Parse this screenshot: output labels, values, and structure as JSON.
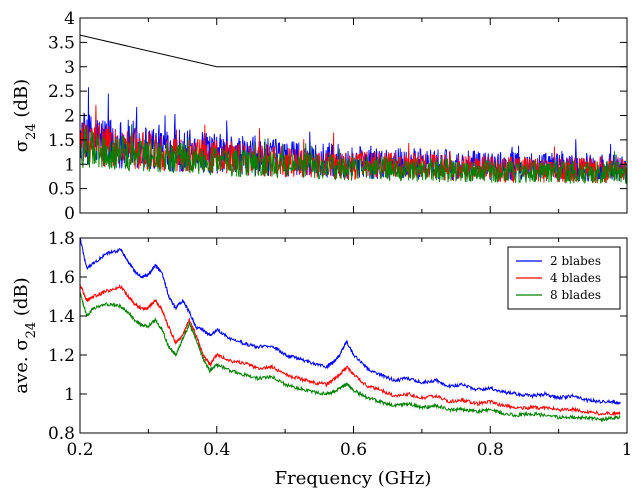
{
  "chart_data": [
    {
      "type": "line",
      "ylabel_base": "σ",
      "ylabel_sub": "24",
      "ylabel_unit": " (dB)",
      "xlim": [
        0.2,
        1.0
      ],
      "ylim": [
        0,
        4
      ],
      "xticks": [
        0.2,
        0.4,
        0.6,
        0.8,
        1.0
      ],
      "yticks": [
        0,
        0.5,
        1,
        1.5,
        2,
        2.5,
        3,
        3.5,
        4
      ],
      "ytick_labels": [
        "0",
        "0.5",
        "1",
        "1.5",
        "2",
        "2.5",
        "3",
        "3.5",
        "4"
      ],
      "grid": false,
      "threshold": {
        "color": "#000000",
        "x": [
          0.2,
          0.4,
          1.0
        ],
        "y": [
          3.65,
          3.0,
          3.0
        ]
      },
      "series": [
        {
          "color": "#0000ff",
          "order": 0,
          "x_start": 0.2,
          "x_end": 1.0,
          "envelope_x": [
            0.2,
            0.3,
            0.4,
            0.5,
            0.6,
            0.7,
            0.8,
            0.9,
            1.0
          ],
          "mean": [
            1.55,
            1.35,
            1.22,
            1.12,
            1.05,
            1.0,
            0.97,
            0.95,
            0.93
          ],
          "amplitude": [
            0.55,
            0.5,
            0.42,
            0.38,
            0.35,
            0.32,
            0.3,
            0.3,
            0.3
          ]
        },
        {
          "color": "#ff0000",
          "order": 1,
          "x_start": 0.2,
          "x_end": 1.0,
          "envelope_x": [
            0.2,
            0.3,
            0.4,
            0.5,
            0.6,
            0.7,
            0.8,
            0.9,
            1.0
          ],
          "mean": [
            1.42,
            1.28,
            1.15,
            1.05,
            0.98,
            0.94,
            0.9,
            0.88,
            0.88
          ],
          "amplitude": [
            0.45,
            0.4,
            0.35,
            0.32,
            0.3,
            0.28,
            0.27,
            0.27,
            0.27
          ]
        },
        {
          "color": "#008000",
          "order": 2,
          "x_start": 0.2,
          "x_end": 1.0,
          "envelope_x": [
            0.2,
            0.3,
            0.4,
            0.5,
            0.6,
            0.7,
            0.8,
            0.9,
            1.0
          ],
          "mean": [
            1.32,
            1.18,
            1.05,
            0.98,
            0.92,
            0.88,
            0.86,
            0.84,
            0.84
          ],
          "amplitude": [
            0.4,
            0.35,
            0.3,
            0.28,
            0.26,
            0.25,
            0.24,
            0.24,
            0.24
          ]
        }
      ]
    },
    {
      "type": "line",
      "xlabel": "Frequency (GHz)",
      "ylabel_base": "ave. σ",
      "ylabel_sub": "24",
      "ylabel_unit": " (dB)",
      "xlim": [
        0.2,
        1.0
      ],
      "ylim": [
        0.8,
        1.8
      ],
      "xticks": [
        0.2,
        0.4,
        0.6,
        0.8,
        1.0
      ],
      "xtick_labels": [
        "0.2",
        "0.4",
        "0.6",
        "0.8",
        "1"
      ],
      "yticks": [
        0.8,
        1.0,
        1.2,
        1.4,
        1.6,
        1.8
      ],
      "ytick_labels": [
        "0.8",
        "1",
        "1.2",
        "1.4",
        "1.6",
        "1.8"
      ],
      "grid": false,
      "legend_position": "top-right",
      "series": [
        {
          "name": "2 blabes",
          "color": "#0000ff",
          "x": [
            0.2,
            0.21,
            0.22,
            0.24,
            0.26,
            0.27,
            0.28,
            0.29,
            0.3,
            0.31,
            0.32,
            0.33,
            0.34,
            0.35,
            0.36,
            0.37,
            0.38,
            0.39,
            0.4,
            0.42,
            0.44,
            0.46,
            0.48,
            0.5,
            0.52,
            0.54,
            0.56,
            0.57,
            0.58,
            0.59,
            0.6,
            0.62,
            0.64,
            0.66,
            0.68,
            0.7,
            0.72,
            0.74,
            0.76,
            0.78,
            0.8,
            0.82,
            0.84,
            0.86,
            0.88,
            0.9,
            0.92,
            0.94,
            0.96,
            0.98,
            0.99
          ],
          "y": [
            1.8,
            1.64,
            1.67,
            1.72,
            1.74,
            1.68,
            1.63,
            1.6,
            1.61,
            1.66,
            1.62,
            1.5,
            1.44,
            1.48,
            1.42,
            1.34,
            1.33,
            1.3,
            1.33,
            1.28,
            1.26,
            1.24,
            1.25,
            1.2,
            1.18,
            1.16,
            1.14,
            1.16,
            1.2,
            1.27,
            1.2,
            1.13,
            1.1,
            1.07,
            1.08,
            1.06,
            1.07,
            1.04,
            1.05,
            1.02,
            1.03,
            1.01,
            1.0,
            0.99,
            1.0,
            0.98,
            0.99,
            0.97,
            0.96,
            0.96,
            0.95
          ]
        },
        {
          "name": "4 blades",
          "color": "#ff0000",
          "x": [
            0.2,
            0.21,
            0.22,
            0.24,
            0.26,
            0.27,
            0.28,
            0.29,
            0.3,
            0.31,
            0.32,
            0.33,
            0.34,
            0.35,
            0.36,
            0.37,
            0.38,
            0.39,
            0.4,
            0.42,
            0.44,
            0.46,
            0.48,
            0.5,
            0.52,
            0.54,
            0.56,
            0.57,
            0.58,
            0.59,
            0.6,
            0.62,
            0.64,
            0.66,
            0.68,
            0.7,
            0.72,
            0.74,
            0.76,
            0.78,
            0.8,
            0.82,
            0.84,
            0.86,
            0.88,
            0.9,
            0.92,
            0.94,
            0.96,
            0.98,
            0.99
          ],
          "y": [
            1.56,
            1.48,
            1.5,
            1.53,
            1.55,
            1.5,
            1.46,
            1.44,
            1.44,
            1.48,
            1.43,
            1.34,
            1.26,
            1.3,
            1.38,
            1.3,
            1.2,
            1.15,
            1.2,
            1.17,
            1.16,
            1.13,
            1.14,
            1.1,
            1.08,
            1.06,
            1.05,
            1.07,
            1.1,
            1.14,
            1.1,
            1.04,
            1.02,
            0.99,
            1.0,
            0.98,
            0.99,
            0.96,
            0.97,
            0.95,
            0.96,
            0.94,
            0.93,
            0.93,
            0.93,
            0.92,
            0.92,
            0.91,
            0.9,
            0.9,
            0.9
          ]
        },
        {
          "name": "8 blades",
          "color": "#008000",
          "x": [
            0.2,
            0.21,
            0.22,
            0.24,
            0.26,
            0.27,
            0.28,
            0.29,
            0.3,
            0.31,
            0.32,
            0.33,
            0.34,
            0.35,
            0.36,
            0.37,
            0.38,
            0.39,
            0.4,
            0.42,
            0.44,
            0.46,
            0.48,
            0.5,
            0.52,
            0.54,
            0.56,
            0.57,
            0.58,
            0.59,
            0.6,
            0.62,
            0.64,
            0.66,
            0.68,
            0.7,
            0.72,
            0.74,
            0.76,
            0.78,
            0.8,
            0.82,
            0.84,
            0.86,
            0.88,
            0.9,
            0.92,
            0.94,
            0.96,
            0.98,
            0.99
          ],
          "y": [
            1.52,
            1.4,
            1.44,
            1.46,
            1.45,
            1.42,
            1.38,
            1.35,
            1.35,
            1.38,
            1.33,
            1.24,
            1.2,
            1.28,
            1.36,
            1.28,
            1.18,
            1.12,
            1.15,
            1.12,
            1.1,
            1.08,
            1.09,
            1.05,
            1.03,
            1.01,
            1.0,
            1.01,
            1.03,
            1.05,
            1.02,
            0.98,
            0.96,
            0.94,
            0.95,
            0.93,
            0.94,
            0.92,
            0.92,
            0.91,
            0.92,
            0.9,
            0.89,
            0.9,
            0.89,
            0.88,
            0.88,
            0.88,
            0.87,
            0.88,
            0.88
          ]
        }
      ]
    }
  ]
}
